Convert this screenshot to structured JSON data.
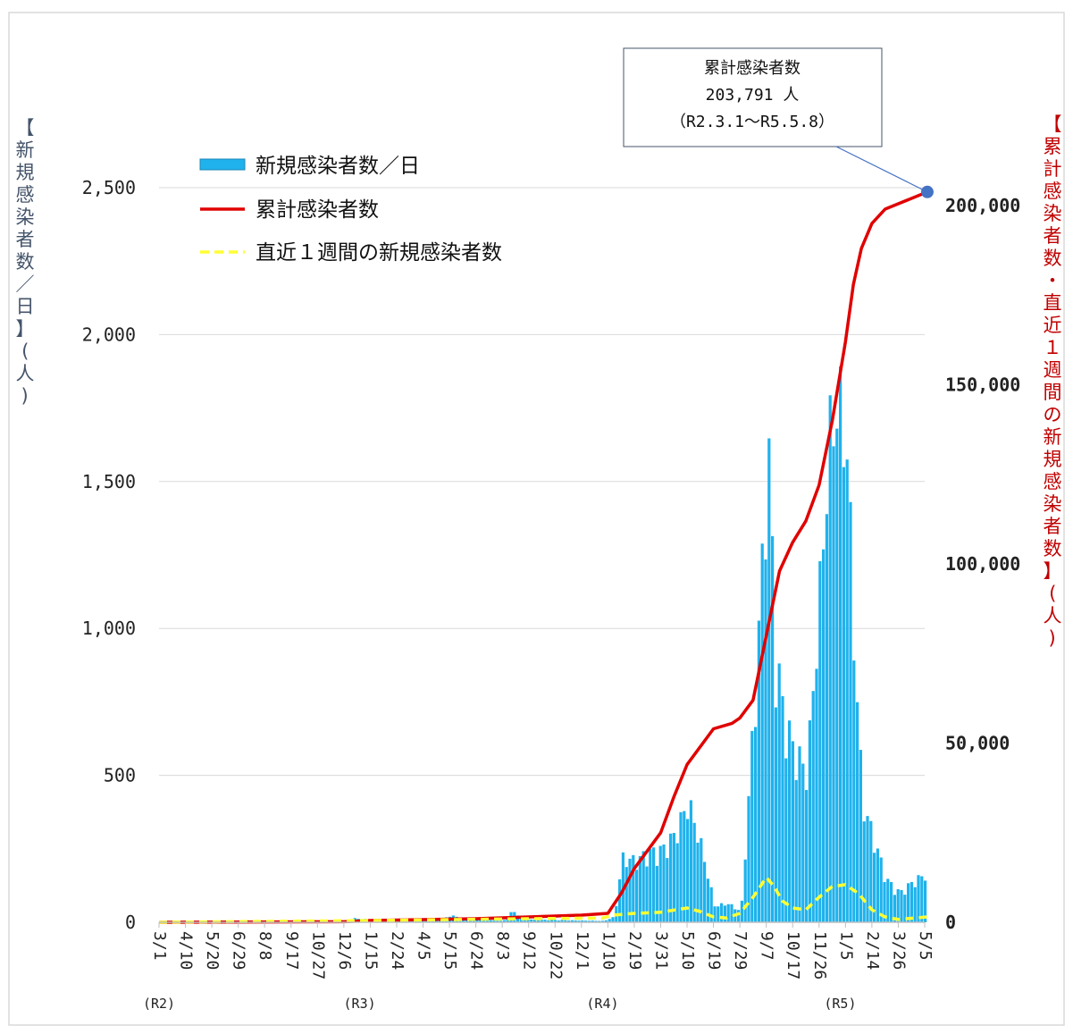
{
  "chart_data": {
    "type": "bar",
    "y_left": {
      "label": "【新規感染者数／日】(人)",
      "ticks": [
        "0",
        "500",
        "1,000",
        "1,500",
        "2,000",
        "2,500"
      ],
      "ylim": [
        0,
        2500
      ]
    },
    "y_right": {
      "label": "【累計感染者数・直近１週間の新規感染者数】(人)",
      "ticks": [
        "0",
        "50,000",
        "100,000",
        "150,000",
        "200,000"
      ],
      "ylim": [
        0,
        210000
      ]
    },
    "x_tick_labels": [
      "3/1",
      "4/10",
      "5/20",
      "6/29",
      "8/8",
      "9/17",
      "10/27",
      "12/6",
      "1/15",
      "2/24",
      "4/5",
      "5/15",
      "6/24",
      "8/3",
      "9/12",
      "10/22",
      "12/1",
      "1/10",
      "2/19",
      "3/31",
      "5/10",
      "6/19",
      "7/29",
      "9/7",
      "10/17",
      "11/26",
      "1/5",
      "2/14",
      "3/26",
      "5/5"
    ],
    "era_labels": [
      {
        "label": "(R2)",
        "at_tick": 0
      },
      {
        "label": "(R3)",
        "at_tick": 7.6
      },
      {
        "label": "(R4)",
        "at_tick": 16.8
      },
      {
        "label": "(R5)",
        "at_tick": 25.8
      }
    ],
    "legend": {
      "placement": "top-left",
      "entries": [
        {
          "name": "新規感染者数／日",
          "style": "bar",
          "color": "#1FB2EC"
        },
        {
          "name": "累計感染者数",
          "style": "line",
          "color": "#E00000"
        },
        {
          "name": "直近１週間の新規感染者数",
          "style": "dashed",
          "color": "#FFFF33"
        }
      ]
    },
    "annotation": {
      "lines": [
        "累計感染者数",
        "203,791 人",
        "（R2.3.1～R5.5.8）"
      ],
      "point": {
        "x_tick": 29.1,
        "cumulative": 203791
      }
    },
    "daily_new_cases": {
      "note_unit": "people per day, approximate weekly peaks",
      "x_tick": [
        0,
        7,
        7.3,
        8,
        10.5,
        11,
        11.5,
        13,
        13.3,
        14,
        16.8,
        17.2,
        17.5,
        18,
        18.5,
        19,
        19.5,
        20,
        20.5,
        21,
        21.5,
        22,
        22.5,
        22.8,
        23,
        23.3,
        23.6,
        24,
        24.5,
        25,
        25.3,
        25.6,
        26,
        26.3,
        26.6,
        27,
        27.5,
        28,
        28.5,
        29,
        29.1
      ],
      "values": [
        5,
        5,
        15,
        10,
        5,
        25,
        15,
        5,
        40,
        10,
        5,
        20,
        240,
        230,
        260,
        270,
        330,
        450,
        280,
        60,
        70,
        40,
        800,
        1330,
        1870,
        1020,
        780,
        640,
        560,
        1260,
        1750,
        1950,
        1800,
        1000,
        450,
        320,
        160,
        110,
        150,
        180,
        80
      ]
    },
    "cumulative_cases": {
      "x_tick": [
        0,
        7,
        8,
        12,
        14,
        16,
        17,
        17.5,
        18,
        19,
        19.5,
        20,
        21,
        21.7,
        22,
        22.5,
        23,
        23.5,
        24,
        24.5,
        25,
        25.5,
        26,
        26.3,
        26.6,
        27,
        27.5,
        28,
        29.1
      ],
      "values": [
        0,
        150,
        500,
        1000,
        1500,
        2000,
        2500,
        8000,
        15000,
        25000,
        35000,
        44000,
        54000,
        55500,
        57000,
        62000,
        80000,
        98000,
        106000,
        112000,
        122000,
        140000,
        162000,
        178000,
        188000,
        195000,
        199000,
        200500,
        203791
      ]
    },
    "weekly_new_cases": {
      "x_tick": [
        0,
        8,
        14,
        16.8,
        17.2,
        18,
        19,
        20,
        20.5,
        21,
        21.5,
        22,
        22.5,
        23,
        23.3,
        23.6,
        24,
        24.5,
        25,
        25.5,
        26,
        26.5,
        27,
        27.5,
        28,
        29.1
      ],
      "values": [
        0,
        500,
        1000,
        1200,
        2000,
        2500,
        2800,
        4000,
        3000,
        1500,
        1200,
        2500,
        7000,
        12500,
        10000,
        6000,
        4000,
        3500,
        7000,
        10000,
        10500,
        8000,
        3500,
        1500,
        800,
        1500
      ]
    }
  }
}
